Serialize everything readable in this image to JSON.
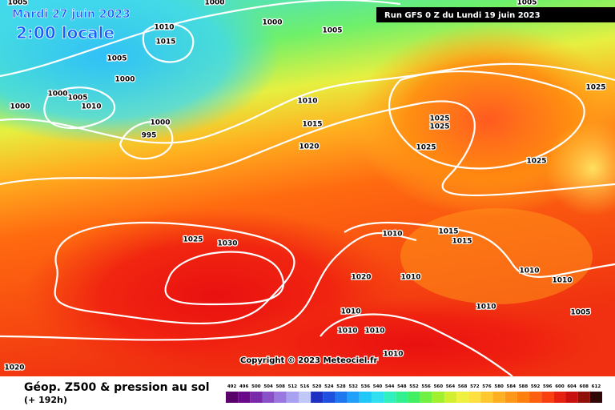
{
  "header": {
    "date": "Mardi 27 juin 2023",
    "time": "2:00 locale",
    "run": "Run GFS 0 Z du Lundi 19 juin 2023"
  },
  "footer": {
    "title": "Géop. Z500 & pression au sol",
    "lead": "(+ 192h)",
    "copyright": "Copyright © 2023 Meteociel.fr"
  },
  "scale": {
    "labels": [
      "492",
      "496",
      "500",
      "504",
      "508",
      "512",
      "516",
      "520",
      "524",
      "528",
      "532",
      "536",
      "540",
      "544",
      "548",
      "552",
      "556",
      "560",
      "564",
      "568",
      "572",
      "576",
      "580",
      "584",
      "588",
      "592",
      "596",
      "600",
      "604",
      "608",
      "612"
    ]
  },
  "isobars": {
    "labels": [
      "1005",
      "1000",
      "1005",
      "1000",
      "1005",
      "1010",
      "1015",
      "1005",
      "1000",
      "1000",
      "1005",
      "1010",
      "1000",
      "1000",
      "995",
      "1010",
      "1015",
      "1020",
      "1025",
      "1025",
      "1025",
      "1025",
      "1025",
      "1025",
      "1030",
      "1010",
      "1015",
      "1015",
      "1020",
      "1010",
      "1010",
      "1010",
      "1010",
      "1010",
      "1005",
      "1010",
      "1010",
      "1010",
      "1020"
    ]
  }
}
